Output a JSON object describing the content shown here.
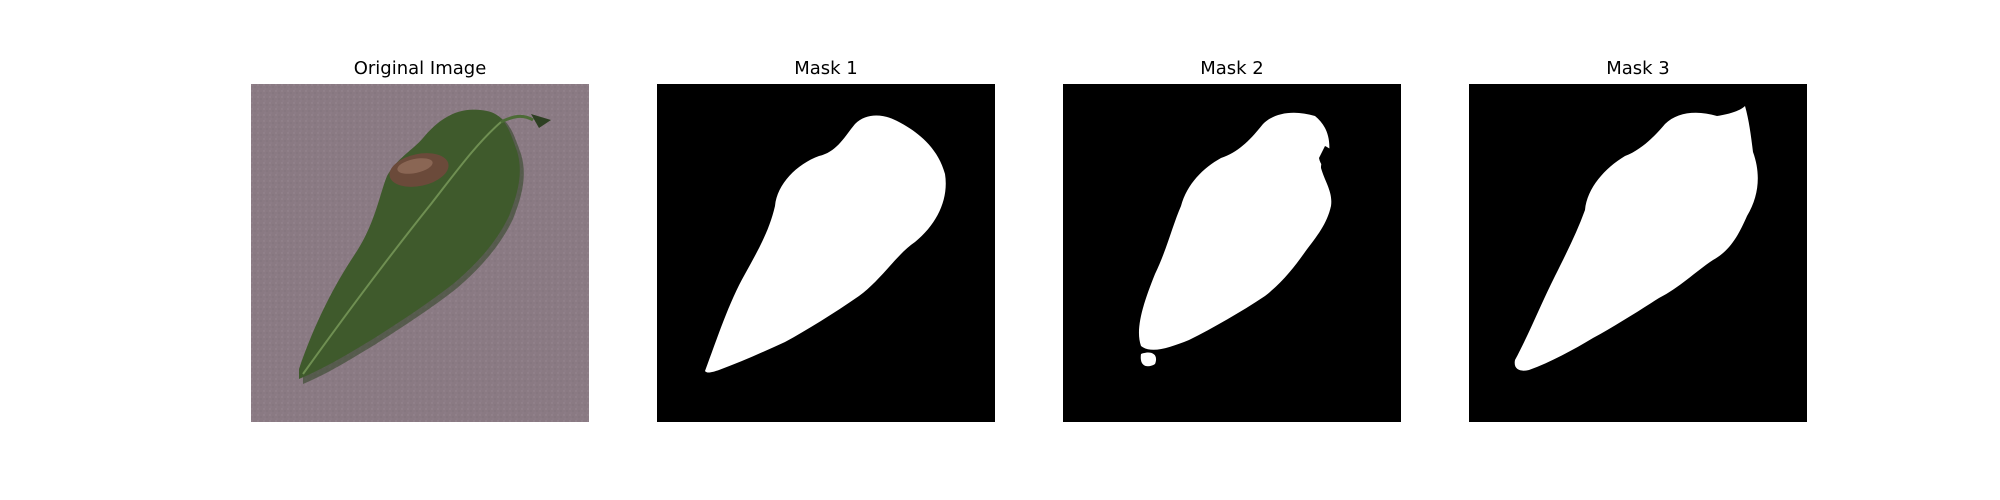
{
  "figure": {
    "panels": [
      {
        "title": "Original Image",
        "kind": "photo"
      },
      {
        "title": "Mask 1",
        "kind": "mask"
      },
      {
        "title": "Mask 2",
        "kind": "mask"
      },
      {
        "title": "Mask 3",
        "kind": "mask"
      }
    ]
  },
  "colors": {
    "page_background": "#ffffff",
    "photo_background": "#8a7a83",
    "leaf_green": "#3f5a2c",
    "leaf_shadow": "#2c4220",
    "leaf_vein": "#6f8f52",
    "insect_brown": "#6b4a3a",
    "mask_background": "#000000",
    "mask_foreground": "#ffffff"
  }
}
